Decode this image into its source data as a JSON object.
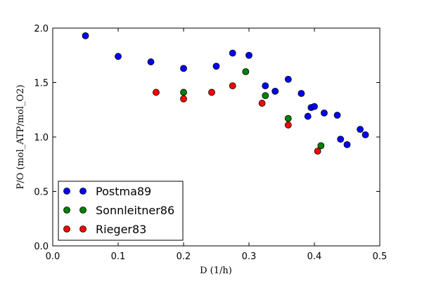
{
  "chart_data": {
    "type": "scatter",
    "xlabel": "D (1/h)",
    "ylabel": "P/O (mol_ATP/mol_O2)",
    "xlim": [
      0.0,
      0.5
    ],
    "ylim": [
      0.0,
      2.0
    ],
    "x_ticks": [
      "0.0",
      "0.1",
      "0.2",
      "0.3",
      "0.4",
      "0.5"
    ],
    "y_ticks": [
      "0.0",
      "0.5",
      "1.0",
      "1.5",
      "2.0"
    ],
    "grid": false,
    "legend_position": "bottom-left",
    "series": [
      {
        "name": "Postma89",
        "color": "#0000ff",
        "points": [
          [
            0.05,
            1.93
          ],
          [
            0.1,
            1.74
          ],
          [
            0.15,
            1.69
          ],
          [
            0.2,
            1.63
          ],
          [
            0.25,
            1.65
          ],
          [
            0.275,
            1.77
          ],
          [
            0.3,
            1.75
          ],
          [
            0.325,
            1.47
          ],
          [
            0.34,
            1.42
          ],
          [
            0.36,
            1.53
          ],
          [
            0.38,
            1.4
          ],
          [
            0.39,
            1.19
          ],
          [
            0.395,
            1.27
          ],
          [
            0.4,
            1.28
          ],
          [
            0.415,
            1.22
          ],
          [
            0.435,
            1.2
          ],
          [
            0.44,
            0.98
          ],
          [
            0.45,
            0.93
          ],
          [
            0.47,
            1.07
          ],
          [
            0.478,
            1.02
          ]
        ]
      },
      {
        "name": "Sonnleitner86",
        "color": "#008000",
        "points": [
          [
            0.2,
            1.41
          ],
          [
            0.295,
            1.6
          ],
          [
            0.325,
            1.38
          ],
          [
            0.36,
            1.17
          ],
          [
            0.41,
            0.92
          ]
        ]
      },
      {
        "name": "Rieger83",
        "color": "#ff0000",
        "points": [
          [
            0.158,
            1.41
          ],
          [
            0.2,
            1.35
          ],
          [
            0.243,
            1.41
          ],
          [
            0.275,
            1.47
          ],
          [
            0.32,
            1.31
          ],
          [
            0.36,
            1.11
          ],
          [
            0.405,
            0.87
          ]
        ]
      }
    ]
  }
}
